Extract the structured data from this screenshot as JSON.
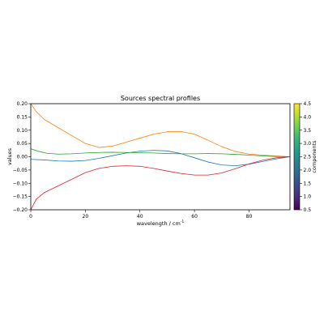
{
  "chart_data": {
    "type": "line",
    "title": "Sources spectral profiles",
    "xlabel": "wavelength / cm",
    "xlabel_superscript": "-1",
    "ylabel": "values",
    "xlim": [
      0,
      95
    ],
    "ylim": [
      -0.2,
      0.2
    ],
    "x_ticks": [
      0,
      20,
      40,
      60,
      80
    ],
    "y_ticks": [
      -0.2,
      -0.15,
      -0.1,
      -0.05,
      0.0,
      0.05,
      0.1,
      0.15,
      0.2
    ],
    "x_tick_labels": [
      "0",
      "20",
      "40",
      "60",
      "80"
    ],
    "y_tick_labels": [
      "−0.20",
      "−0.15",
      "−0.10",
      "−0.05",
      "0.00",
      "0.05",
      "0.10",
      "0.15",
      "0.20"
    ],
    "grid": false,
    "series": [
      {
        "color": "#1f77b4",
        "x": [
          0,
          5,
          10,
          15,
          20,
          25,
          30,
          35,
          40,
          45,
          50,
          55,
          60,
          65,
          70,
          75,
          80,
          85,
          90,
          95
        ],
        "y": [
          -0.01,
          -0.012,
          -0.016,
          -0.017,
          -0.014,
          -0.006,
          0.004,
          0.014,
          0.021,
          0.024,
          0.022,
          0.012,
          -0.004,
          -0.02,
          -0.031,
          -0.034,
          -0.028,
          -0.018,
          -0.008,
          0.0
        ]
      },
      {
        "color": "#ff7f0e",
        "x": [
          0,
          2,
          5,
          10,
          15,
          20,
          25,
          30,
          35,
          40,
          45,
          50,
          55,
          60,
          65,
          70,
          75,
          80,
          85,
          90,
          95
        ],
        "y": [
          0.2,
          0.17,
          0.14,
          0.11,
          0.08,
          0.05,
          0.035,
          0.04,
          0.055,
          0.07,
          0.085,
          0.094,
          0.095,
          0.085,
          0.062,
          0.038,
          0.02,
          0.01,
          0.006,
          0.003,
          0.0
        ]
      },
      {
        "color": "#2ca02c",
        "x": [
          0,
          3,
          6,
          10,
          15,
          20,
          25,
          30,
          35,
          40,
          45,
          50,
          55,
          60,
          65,
          70,
          75,
          80,
          85,
          90,
          95
        ],
        "y": [
          0.03,
          0.02,
          0.013,
          0.01,
          0.011,
          0.014,
          0.016,
          0.017,
          0.016,
          0.015,
          0.014,
          0.012,
          0.011,
          0.011,
          0.012,
          0.011,
          0.009,
          0.006,
          0.003,
          0.001,
          0.0
        ]
      },
      {
        "color": "#d62728",
        "x": [
          0,
          2,
          5,
          10,
          15,
          20,
          25,
          30,
          35,
          40,
          45,
          50,
          55,
          60,
          65,
          70,
          75,
          80,
          85,
          90,
          95
        ],
        "y": [
          -0.2,
          -0.16,
          -0.135,
          -0.11,
          -0.085,
          -0.06,
          -0.044,
          -0.036,
          -0.034,
          -0.036,
          -0.044,
          -0.054,
          -0.063,
          -0.069,
          -0.069,
          -0.061,
          -0.045,
          -0.027,
          -0.013,
          -0.004,
          0.0
        ]
      }
    ],
    "colorbar": {
      "label": "components",
      "range": [
        0.5,
        4.5
      ],
      "ticks": [
        0.5,
        1.0,
        1.5,
        2.0,
        2.5,
        3.0,
        3.5,
        4.0,
        4.5
      ],
      "tick_labels": [
        "0.5",
        "1.0",
        "1.5",
        "2.0",
        "2.5",
        "3.0",
        "3.5",
        "4.0",
        "4.5"
      ],
      "colormap": [
        "#440154",
        "#482878",
        "#3e4989",
        "#31688e",
        "#26828e",
        "#1f9e89",
        "#35b779",
        "#6ece58",
        "#b5de2b",
        "#fde725"
      ]
    }
  }
}
